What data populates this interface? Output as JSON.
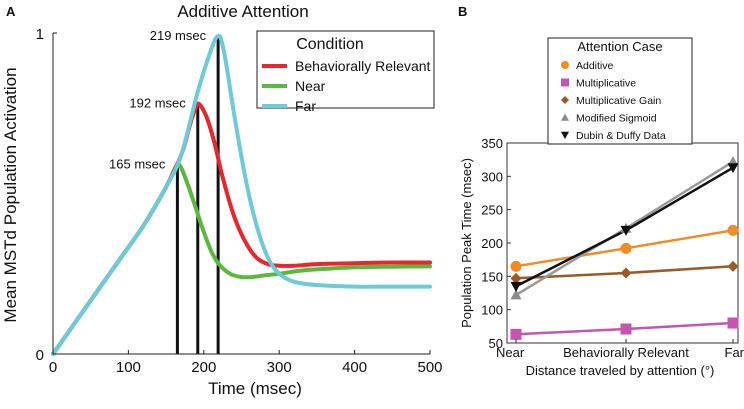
{
  "panels": {
    "a": {
      "label": "A"
    },
    "b": {
      "label": "B"
    }
  },
  "chart_data": [
    {
      "type": "line",
      "title": "Additive Attention",
      "xlabel": "Time (msec)",
      "ylabel": "Mean MSTd Population Activation",
      "xlim": [
        0,
        500
      ],
      "ylim": [
        0,
        1
      ],
      "xticks": [
        "0",
        "100",
        "200",
        "300",
        "400",
        "500"
      ],
      "yticks": [
        "0",
        "1"
      ],
      "legend": {
        "title": "Condition",
        "position": "top-right"
      },
      "series": [
        {
          "name": "Behaviorally Relevant",
          "color": "#e8262b",
          "x": [
            0,
            30,
            60,
            90,
            120,
            150,
            170,
            180,
            185,
            190,
            192,
            197,
            205,
            215,
            225,
            240,
            255,
            270,
            285,
            300,
            320,
            350,
            400,
            450,
            500
          ],
          "y": [
            0,
            0.1,
            0.2,
            0.3,
            0.4,
            0.52,
            0.62,
            0.7,
            0.74,
            0.77,
            0.78,
            0.77,
            0.73,
            0.65,
            0.55,
            0.43,
            0.35,
            0.3,
            0.28,
            0.275,
            0.275,
            0.28,
            0.283,
            0.285,
            0.285
          ]
        },
        {
          "name": "Near",
          "color": "#5cb83c",
          "x": [
            0,
            30,
            60,
            90,
            120,
            150,
            160,
            165,
            170,
            180,
            190,
            200,
            210,
            220,
            235,
            250,
            265,
            280,
            300,
            330,
            360,
            400,
            450,
            500
          ],
          "y": [
            0,
            0.1,
            0.2,
            0.3,
            0.4,
            0.52,
            0.57,
            0.59,
            0.58,
            0.52,
            0.45,
            0.38,
            0.32,
            0.28,
            0.25,
            0.24,
            0.24,
            0.245,
            0.25,
            0.26,
            0.265,
            0.27,
            0.272,
            0.273
          ]
        },
        {
          "name": "Far",
          "color": "#6ccbd9",
          "x": [
            0,
            30,
            60,
            90,
            120,
            150,
            170,
            190,
            200,
            210,
            215,
            219,
            223,
            230,
            240,
            255,
            270,
            285,
            300,
            320,
            350,
            400,
            450,
            500
          ],
          "y": [
            0,
            0.1,
            0.2,
            0.3,
            0.4,
            0.52,
            0.62,
            0.8,
            0.88,
            0.95,
            0.98,
            0.99,
            0.98,
            0.9,
            0.75,
            0.55,
            0.4,
            0.3,
            0.25,
            0.225,
            0.215,
            0.21,
            0.21,
            0.21
          ]
        }
      ],
      "peaks": [
        {
          "x": 165,
          "y": 0.59,
          "label": "165 msec"
        },
        {
          "x": 192,
          "y": 0.78,
          "label": "192 msec"
        },
        {
          "x": 219,
          "y": 0.99,
          "label": "219 msec"
        }
      ]
    },
    {
      "type": "line",
      "title": "",
      "xlabel": "Distance traveled by attention (°)",
      "ylabel": "Population Peak Time (msec)",
      "categories": [
        "Near",
        "Behaviorally Relevant",
        "Far"
      ],
      "ylim": [
        50,
        350
      ],
      "yticks": [
        50,
        100,
        150,
        200,
        250,
        300,
        350
      ],
      "legend": {
        "title": "Attention Case",
        "position": "top"
      },
      "series": [
        {
          "name": "Additive",
          "color": "#f28a25",
          "line_color": "#f28a25",
          "marker": "circle",
          "values": [
            165,
            192,
            219
          ]
        },
        {
          "name": "Multiplicative",
          "color": "#c455b0",
          "line_color": "#c455b0",
          "marker": "square",
          "values": [
            63,
            71,
            80
          ]
        },
        {
          "name": "Multiplicative Gain",
          "color": "#9a5a2a",
          "line_color": "#9a5a2a",
          "marker": "diamond",
          "values": [
            147,
            155,
            165
          ]
        },
        {
          "name": "Modified Sigmoid",
          "color": "#8c8c8c",
          "line_color": "#9a9a9a",
          "marker": "triangle-up",
          "values": [
            122,
            222,
            322
          ]
        },
        {
          "name": "Dubin & Duffy Data",
          "color": "#111111",
          "line_color": "#111111",
          "marker": "triangle-down",
          "values": [
            135,
            219,
            313
          ]
        }
      ]
    }
  ]
}
